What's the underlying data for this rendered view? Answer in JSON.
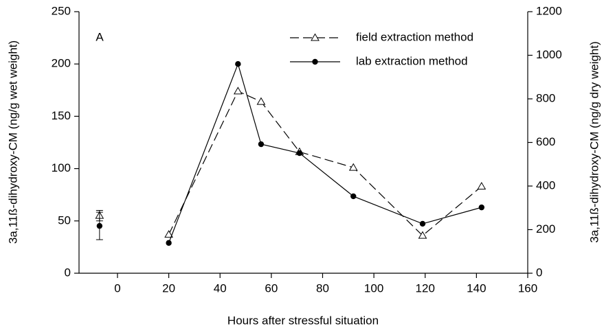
{
  "chart_data": {
    "type": "line",
    "panel_label": "A",
    "x_label": "Hours after stressful situation",
    "y_label": "3a,11ß-dihydroxy-CM (ng/g wet weight)",
    "y2_label": "3a,11ß-dihydroxy-CM (ng/g dry weight)",
    "xlim": [
      -15,
      160
    ],
    "xticks": [
      0,
      20,
      40,
      60,
      80,
      100,
      120,
      140,
      160
    ],
    "ylim": [
      0,
      250
    ],
    "yticks": [
      0,
      50,
      100,
      150,
      200,
      250
    ],
    "y2lim": [
      0,
      1200
    ],
    "y2ticks": [
      0,
      200,
      400,
      600,
      800,
      1000,
      1200
    ],
    "legend": "upper right",
    "x": [
      20,
      47,
      56,
      71,
      92,
      119,
      142
    ],
    "series": [
      {
        "name": "field extraction method",
        "color": "#000000",
        "marker": "triangle-open",
        "dash": true,
        "values": [
          37,
          174,
          164,
          116,
          101,
          36,
          83
        ],
        "baseline": {
          "x": -7,
          "value": 55,
          "error": 5
        }
      },
      {
        "name": "lab extraction method",
        "color": "#000000",
        "marker": "circle-filled",
        "dash": false,
        "axis": "y2",
        "values": [
          139,
          960,
          592,
          551,
          353,
          227,
          302
        ],
        "baseline": {
          "x": -7,
          "value": 217,
          "error": 63
        }
      }
    ]
  }
}
